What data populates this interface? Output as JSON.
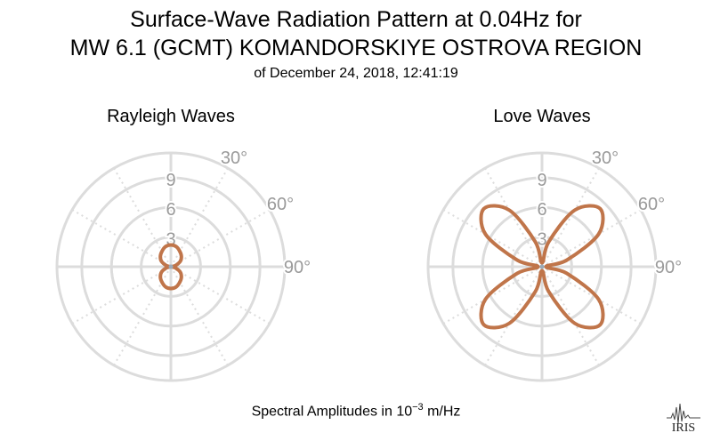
{
  "title": {
    "line1": "Surface-Wave Radiation Pattern at 0.04Hz for",
    "line2": "MW 6.1 (GCMT) KOMANDORSKIYE OSTROVA REGION",
    "line3": "of December 24, 2018, 12:41:19"
  },
  "footer": {
    "prefix": "Spectral Amplitudes in 10",
    "exponent": "−3",
    "suffix": " m/Hz"
  },
  "logo": {
    "text": "IRIS"
  },
  "colors": {
    "curve": "#C0754A",
    "grid": "#DCDCDC",
    "tick": "#9A9A9A",
    "center": "#9AAAB8"
  },
  "chart_data": [
    {
      "type": "polar",
      "title": "Rayleigh Waves",
      "r_ticks": [
        3,
        6,
        9
      ],
      "r_max": 11.5,
      "angle_labels": [
        "30°",
        "60°",
        "90°"
      ],
      "angle_values": [
        0,
        15,
        30,
        45,
        60,
        75,
        90,
        105,
        120,
        135,
        150,
        165,
        180,
        195,
        210,
        225,
        240,
        255,
        270,
        285,
        300,
        315,
        330,
        345
      ],
      "amplitude": [
        2.2,
        2.1,
        1.8,
        1.5,
        1.1,
        0.5,
        0.1,
        0.5,
        1.1,
        1.5,
        1.8,
        2.1,
        2.2,
        2.1,
        1.8,
        1.5,
        1.1,
        0.5,
        0.1,
        0.5,
        1.1,
        1.5,
        1.8,
        2.1
      ]
    },
    {
      "type": "polar",
      "title": "Love Waves",
      "r_ticks": [
        3,
        6,
        9
      ],
      "r_max": 11.5,
      "angle_labels": [
        "30°",
        "60°",
        "90°"
      ],
      "angle_values": [
        0,
        15,
        30,
        45,
        60,
        75,
        90,
        105,
        120,
        135,
        150,
        165,
        180,
        195,
        210,
        225,
        240,
        255,
        270,
        285,
        300,
        315,
        330,
        345
      ],
      "amplitude": [
        0.4,
        2.6,
        6.6,
        8.3,
        6.6,
        2.6,
        0.4,
        2.6,
        6.6,
        8.3,
        6.6,
        2.6,
        0.4,
        2.6,
        6.6,
        8.3,
        6.6,
        2.6,
        0.4,
        2.6,
        6.6,
        8.3,
        6.6,
        2.6
      ]
    }
  ]
}
